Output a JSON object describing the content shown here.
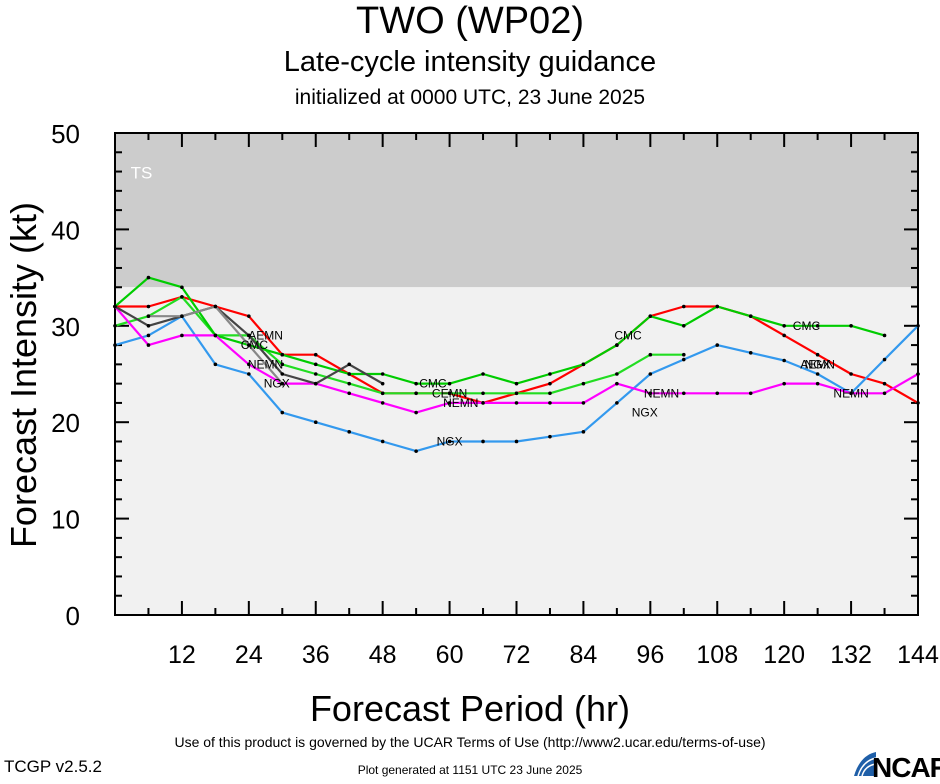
{
  "header": {
    "title": "TWO (WP02)",
    "subtitle": "Late-cycle intensity guidance",
    "initialized": "initialized at 0000 UTC, 23 June 2025"
  },
  "footer": {
    "terms": "Use of this product is governed by the UCAR Terms of Use (http://www2.ucar.edu/terms-of-use)",
    "version": "TCGP v2.5.2",
    "generated": "Plot generated at 1151 UTC   23 June 2025",
    "logo": "NCAR"
  },
  "chart_data": {
    "type": "line",
    "xlabel": "Forecast Period (hr)",
    "ylabel": "Forecast Intensity (kt)",
    "xlim": [
      0,
      144
    ],
    "ylim": [
      0,
      50
    ],
    "xticks": [
      12,
      24,
      36,
      48,
      60,
      72,
      84,
      96,
      108,
      120,
      132,
      144
    ],
    "yticks": [
      0,
      10,
      20,
      30,
      40,
      50
    ],
    "grid": false,
    "legend": "none (series labeled inline)",
    "bands": [
      {
        "label": "TS",
        "from": 34,
        "to": 50,
        "color": "#cccccc"
      },
      {
        "label": "",
        "from": 0,
        "to": 34,
        "color": "#f1f1f1"
      }
    ],
    "series": [
      {
        "name": "AEMN",
        "color": "#ff0000",
        "label_at": [
          [
            27,
            29
          ],
          [
            126,
            26
          ]
        ],
        "points": [
          [
            0,
            32
          ],
          [
            6,
            32
          ],
          [
            12,
            33
          ],
          [
            18,
            32
          ],
          [
            24,
            31
          ],
          [
            30,
            27
          ],
          [
            36,
            27
          ],
          [
            42,
            25
          ],
          [
            48,
            23
          ],
          [
            54,
            23
          ],
          [
            60,
            23
          ],
          [
            66,
            22
          ],
          [
            72,
            23
          ],
          [
            78,
            24
          ],
          [
            84,
            26
          ],
          [
            90,
            28
          ],
          [
            96,
            31
          ],
          [
            102,
            32
          ],
          [
            108,
            32
          ],
          [
            114,
            31
          ],
          [
            120,
            29
          ],
          [
            126,
            27
          ],
          [
            132,
            25
          ],
          [
            138,
            24
          ],
          [
            144,
            22
          ]
        ]
      },
      {
        "name": "CMC",
        "color": "#22dd22",
        "label_at": [
          [
            25,
            28
          ],
          [
            57,
            24
          ],
          [
            92,
            29
          ],
          [
            124,
            30
          ]
        ],
        "points": [
          [
            0,
            30
          ],
          [
            6,
            31
          ],
          [
            12,
            33
          ],
          [
            18,
            29
          ],
          [
            24,
            29
          ],
          [
            30,
            26
          ],
          [
            36,
            25
          ],
          [
            42,
            24
          ],
          [
            48,
            23
          ],
          [
            54,
            23
          ],
          [
            60,
            23
          ],
          [
            66,
            23
          ],
          [
            72,
            23
          ],
          [
            78,
            23
          ],
          [
            84,
            24
          ],
          [
            90,
            25
          ],
          [
            96,
            27
          ],
          [
            102,
            27
          ]
        ]
      },
      {
        "name": "CEMN",
        "color": "#00cc00",
        "label_at": [
          [
            60,
            23
          ]
        ],
        "points": [
          [
            0,
            32
          ],
          [
            6,
            35
          ],
          [
            12,
            34
          ],
          [
            18,
            29
          ],
          [
            24,
            28
          ],
          [
            30,
            27
          ],
          [
            36,
            26
          ],
          [
            42,
            25
          ],
          [
            48,
            25
          ],
          [
            54,
            24
          ],
          [
            60,
            24
          ],
          [
            66,
            25
          ],
          [
            72,
            24
          ],
          [
            78,
            25
          ],
          [
            84,
            26
          ],
          [
            90,
            28
          ],
          [
            96,
            31
          ],
          [
            102,
            30
          ],
          [
            108,
            32
          ],
          [
            114,
            31
          ],
          [
            120,
            30
          ],
          [
            126,
            30
          ],
          [
            132,
            30
          ],
          [
            138,
            29
          ]
        ]
      },
      {
        "name": "NGX",
        "color": "#3399ee",
        "label_at": [
          [
            29,
            24
          ],
          [
            60,
            18
          ],
          [
            95,
            21
          ],
          [
            126,
            26
          ]
        ],
        "points": [
          [
            0,
            28
          ],
          [
            6,
            29
          ],
          [
            12,
            31
          ],
          [
            18,
            26
          ],
          [
            24,
            25
          ],
          [
            30,
            21
          ],
          [
            36,
            20
          ],
          [
            42,
            19
          ],
          [
            48,
            18
          ],
          [
            54,
            17
          ],
          [
            60,
            18
          ],
          [
            66,
            18
          ],
          [
            72,
            18
          ],
          [
            78,
            18.5
          ],
          [
            84,
            19
          ],
          [
            90,
            22
          ],
          [
            96,
            25
          ],
          [
            102,
            26.5
          ],
          [
            108,
            28
          ],
          [
            114,
            27.2
          ],
          [
            120,
            26.4
          ],
          [
            126,
            25
          ],
          [
            132,
            23
          ],
          [
            138,
            26.5
          ],
          [
            144,
            30
          ]
        ]
      },
      {
        "name": "NEMN",
        "color": "#ff00ff",
        "label_at": [
          [
            27,
            26
          ],
          [
            62,
            22
          ],
          [
            98,
            23
          ],
          [
            132,
            23
          ]
        ],
        "points": [
          [
            0,
            32
          ],
          [
            6,
            28
          ],
          [
            12,
            29
          ],
          [
            18,
            29
          ],
          [
            24,
            26
          ],
          [
            30,
            24
          ],
          [
            36,
            24
          ],
          [
            42,
            23
          ],
          [
            48,
            22
          ],
          [
            54,
            21
          ],
          [
            60,
            22
          ],
          [
            66,
            22
          ],
          [
            72,
            22
          ],
          [
            78,
            22
          ],
          [
            84,
            22
          ],
          [
            90,
            24
          ],
          [
            96,
            23
          ],
          [
            102,
            23
          ],
          [
            108,
            23
          ],
          [
            114,
            23
          ],
          [
            120,
            24
          ],
          [
            126,
            24
          ],
          [
            132,
            23
          ],
          [
            138,
            23
          ],
          [
            144,
            25
          ]
        ]
      },
      {
        "name": "",
        "color": "#444444",
        "label_at": [],
        "points": [
          [
            0,
            32
          ],
          [
            6,
            30
          ],
          [
            12,
            31
          ],
          [
            18,
            32
          ],
          [
            24,
            29
          ],
          [
            30,
            25
          ],
          [
            36,
            24
          ],
          [
            42,
            26
          ],
          [
            48,
            24
          ]
        ]
      },
      {
        "name": "",
        "color": "#888888",
        "label_at": [],
        "points": [
          [
            6,
            31
          ],
          [
            12,
            31
          ],
          [
            18,
            32
          ],
          [
            24,
            28
          ],
          [
            30,
            24
          ]
        ]
      }
    ]
  }
}
